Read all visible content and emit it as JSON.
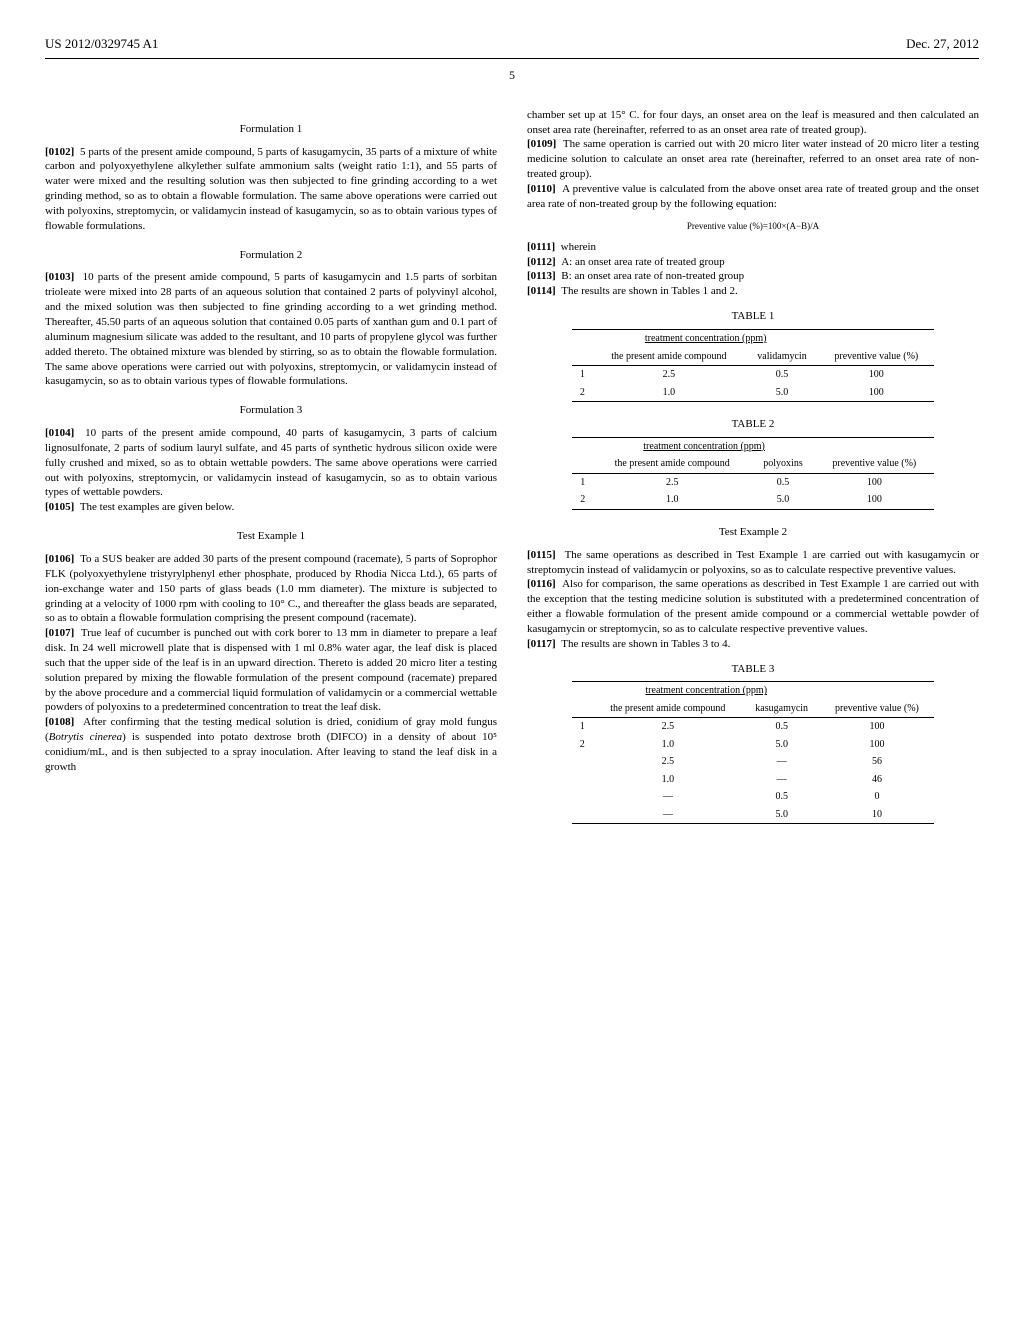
{
  "header": {
    "left": "US 2012/0329745 A1",
    "right": "Dec. 27, 2012"
  },
  "page_number": "5",
  "left_column": {
    "formulation1": {
      "heading": "Formulation 1",
      "para_label": "[0102]",
      "text": "5 parts of the present amide compound, 5 parts of kasugamycin, 35 parts of a mixture of white carbon and polyoxyethylene alkylether sulfate ammonium salts (weight ratio 1:1), and 55 parts of water were mixed and the resulting solution was then subjected to fine grinding according to a wet grinding method, so as to obtain a flowable formulation. The same above operations were carried out with polyoxins, streptomycin, or validamycin instead of kasugamycin, so as to obtain various types of flowable formulations."
    },
    "formulation2": {
      "heading": "Formulation 2",
      "para_label": "[0103]",
      "text": "10 parts of the present amide compound, 5 parts of kasugamycin and 1.5 parts of sorbitan trioleate were mixed into 28 parts of an aqueous solution that contained 2 parts of polyvinyl alcohol, and the mixed solution was then subjected to fine grinding according to a wet grinding method. Thereafter, 45.50 parts of an aqueous solution that contained 0.05 parts of xanthan gum and 0.1 part of aluminum magnesium silicate was added to the resultant, and 10 parts of propylene glycol was further added thereto. The obtained mixture was blended by stirring, so as to obtain the flowable formulation. The same above operations were carried out with polyoxins, streptomycin, or validamycin instead of kasugamycin, so as to obtain various types of flowable formulations."
    },
    "formulation3": {
      "heading": "Formulation 3",
      "para_label": "[0104]",
      "text": "10 parts of the present amide compound, 40 parts of kasugamycin, 3 parts of calcium lignosulfonate, 2 parts of sodium lauryl sulfate, and 45 parts of synthetic hydrous silicon oxide were fully crushed and mixed, so as to obtain wettable powders. The same above operations were carried out with polyoxins, streptomycin, or validamycin instead of kasugamycin, so as to obtain various types of wettable powders."
    },
    "p0105": {
      "label": "[0105]",
      "text": "The test examples are given below."
    },
    "test1": {
      "heading": "Test Example 1",
      "p0106_label": "[0106]",
      "p0106_text": "To a SUS beaker are added 30 parts of the present compound (racemate), 5 parts of Soprophor FLK (polyoxyethylene tristyrylphenyl ether phosphate, produced by Rhodia Nicca Ltd.), 65 parts of ion-exchange water and 150 parts of glass beads (1.0 mm diameter). The mixture is subjected to grinding at a velocity of 1000 rpm with cooling to 10° C., and thereafter the glass beads are separated, so as to obtain a flowable formulation comprising the present compound (racemate).",
      "p0107_label": "[0107]",
      "p0107_text": "True leaf of cucumber is punched out with cork borer to 13 mm in diameter to prepare a leaf disk. In 24 well microwell plate that is dispensed with 1 ml 0.8% water agar, the leaf disk is placed such that the upper side of the leaf is in an upward direction. Thereto is added 20 micro liter a testing solution prepared by mixing the flowable formulation of the present compound (racemate) prepared by the above procedure and a commercial liquid formulation of validamycin or a commercial wettable powders of polyoxins to a predetermined concentration to treat the leaf disk.",
      "p0108_label": "[0108]",
      "p0108_text_before": "After confirming that the testing medical solution is dried, conidium of gray mold fungus (",
      "p0108_italic": "Botrytis cinerea",
      "p0108_text_after": ") is suspended into potato dextrose broth (DIFCO) in a density of about 10⁵ conidium/mL, and is then subjected to a spray inoculation. After leaving to stand the leaf disk in a growth"
    }
  },
  "right_column": {
    "cont_text": "chamber set up at 15° C. for four days, an onset area on the leaf is measured and then calculated an onset area rate (hereinafter, referred to as an onset area rate of treated group).",
    "p0109": {
      "label": "[0109]",
      "text": "The same operation is carried out with 20 micro liter water instead of 20 micro liter a testing medicine solution to calculate an onset area rate (hereinafter, referred to an onset area rate of non-treated group)."
    },
    "p0110": {
      "label": "[0110]",
      "text": "A preventive value is calculated from the above onset area rate of treated group and the onset area rate of non-treated group by the following equation:"
    },
    "equation": "Preventive value (%)=100×(A−B)/A",
    "p0111": {
      "label": "[0111]",
      "text": "wherein"
    },
    "p0112": {
      "label": "[0112]",
      "text": "A: an onset area rate of treated group"
    },
    "p0113": {
      "label": "[0113]",
      "text": "B: an onset area rate of non-treated group"
    },
    "p0114": {
      "label": "[0114]",
      "text": "The results are shown in Tables 1 and 2."
    },
    "table1": {
      "caption": "TABLE 1",
      "header1": "treatment concentration (ppm)",
      "col1": "the present amide compound",
      "col2": "validamycin",
      "col3": "preventive value (%)",
      "rows": [
        {
          "idx": "1",
          "c1": "2.5",
          "c2": "0.5",
          "c3": "100"
        },
        {
          "idx": "2",
          "c1": "1.0",
          "c2": "5.0",
          "c3": "100"
        }
      ]
    },
    "table2": {
      "caption": "TABLE 2",
      "header1": "treatment concentration (ppm)",
      "col1": "the present amide compound",
      "col2": "polyoxins",
      "col3": "preventive value (%)",
      "rows": [
        {
          "idx": "1",
          "c1": "2.5",
          "c2": "0.5",
          "c3": "100"
        },
        {
          "idx": "2",
          "c1": "1.0",
          "c2": "5.0",
          "c3": "100"
        }
      ]
    },
    "test2": {
      "heading": "Test Example 2",
      "p0115_label": "[0115]",
      "p0115_text": "The same operations as described in Test Example 1 are carried out with kasugamycin or streptomycin instead of validamycin or polyoxins, so as to calculate respective preventive values.",
      "p0116_label": "[0116]",
      "p0116_text": "Also for comparison, the same operations as described in Test Example 1 are carried out with the exception that the testing medicine solution is substituted with a predetermined concentration of either a flowable formulation of the present amide compound or a commercial wettable powder of kasugamycin or streptomycin, so as to calculate respective preventive values.",
      "p0117_label": "[0117]",
      "p0117_text": "The results are shown in Tables 3 to 4."
    },
    "table3": {
      "caption": "TABLE 3",
      "header1": "treatment concentration (ppm)",
      "col1": "the present amide compound",
      "col2": "kasugamycin",
      "col3": "preventive value (%)",
      "rows": [
        {
          "idx": "1",
          "c1": "2.5",
          "c2": "0.5",
          "c3": "100"
        },
        {
          "idx": "2",
          "c1": "1.0",
          "c2": "5.0",
          "c3": "100"
        },
        {
          "idx": "",
          "c1": "2.5",
          "c2": "—",
          "c3": "56"
        },
        {
          "idx": "",
          "c1": "1.0",
          "c2": "—",
          "c3": "46"
        },
        {
          "idx": "",
          "c1": "—",
          "c2": "0.5",
          "c3": "0"
        },
        {
          "idx": "",
          "c1": "—",
          "c2": "5.0",
          "c3": "10"
        }
      ]
    }
  }
}
